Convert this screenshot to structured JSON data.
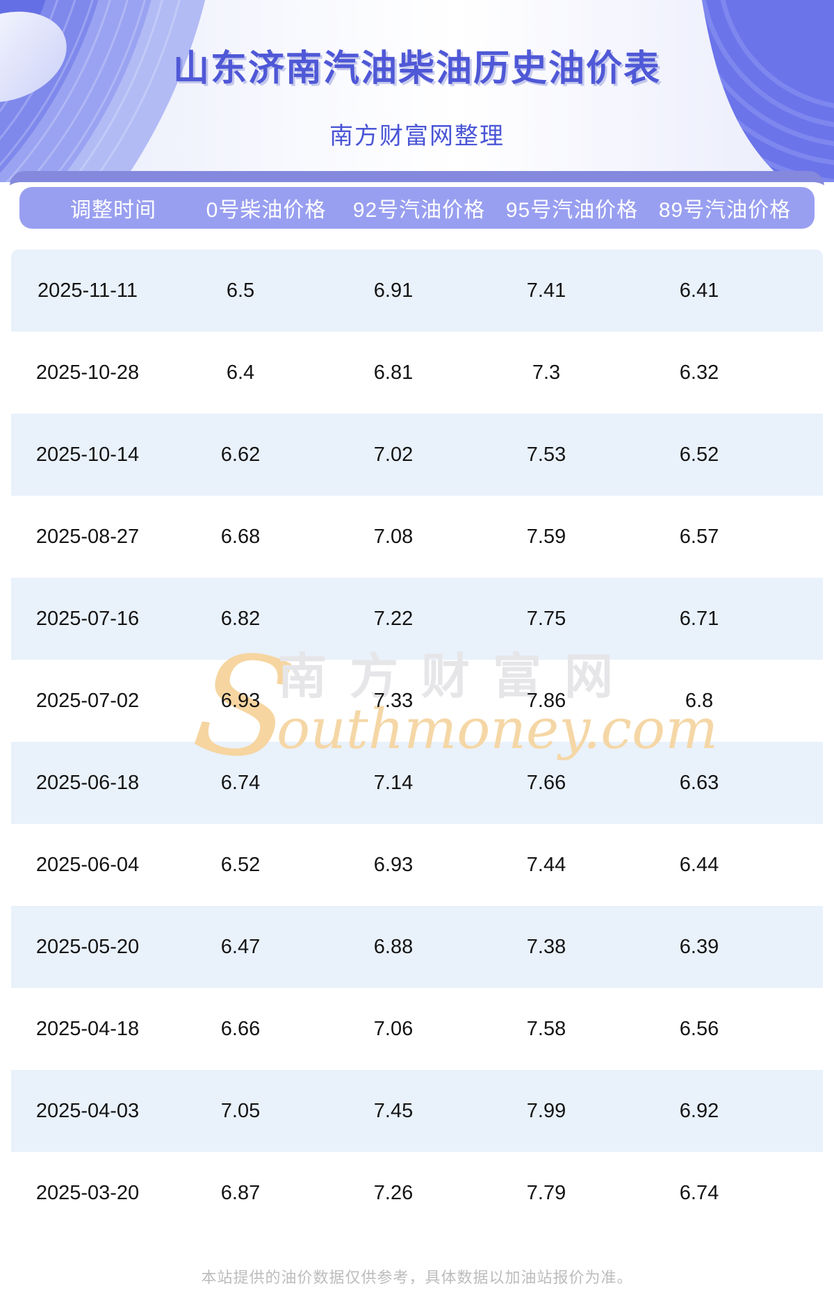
{
  "banner": {
    "title": "山东济南汽油柴油历史油价表",
    "subtitle": "南方财富网整理"
  },
  "table": {
    "headers": [
      "调整时间",
      "0号柴油价格",
      "92号汽油价格",
      "95号汽油价格",
      "89号汽油价格"
    ],
    "rows": [
      {
        "date": "2025-11-11",
        "values": [
          "6.5",
          "6.91",
          "7.41",
          "6.41"
        ]
      },
      {
        "date": "2025-10-28",
        "values": [
          "6.4",
          "6.81",
          "7.3",
          "6.32"
        ]
      },
      {
        "date": "2025-10-14",
        "values": [
          "6.62",
          "7.02",
          "7.53",
          "6.52"
        ]
      },
      {
        "date": "2025-08-27",
        "values": [
          "6.68",
          "7.08",
          "7.59",
          "6.57"
        ]
      },
      {
        "date": "2025-07-16",
        "values": [
          "6.82",
          "7.22",
          "7.75",
          "6.71"
        ]
      },
      {
        "date": "2025-07-02",
        "values": [
          "6.93",
          "7.33",
          "7.86",
          "6.8"
        ]
      },
      {
        "date": "2025-06-18",
        "values": [
          "6.74",
          "7.14",
          "7.66",
          "6.63"
        ]
      },
      {
        "date": "2025-06-04",
        "values": [
          "6.52",
          "6.93",
          "7.44",
          "6.44"
        ]
      },
      {
        "date": "2025-05-20",
        "values": [
          "6.47",
          "6.88",
          "7.38",
          "6.39"
        ]
      },
      {
        "date": "2025-04-18",
        "values": [
          "6.66",
          "7.06",
          "7.58",
          "6.56"
        ]
      },
      {
        "date": "2025-04-03",
        "values": [
          "7.05",
          "7.45",
          "7.99",
          "6.92"
        ]
      },
      {
        "date": "2025-03-20",
        "values": [
          "6.87",
          "7.26",
          "7.79",
          "6.74"
        ]
      }
    ]
  },
  "watermark": {
    "initial": "S",
    "cn": "南方财富网",
    "en": "outhmoney.com"
  },
  "footer": {
    "disclaimer": "本站提供的油价数据仅供参考，具体数据以加油站报价为准。"
  },
  "colors": {
    "title_text": "#4f58d6",
    "header_band": "#999ff0",
    "dark_strip": "#8489dd",
    "row_alt": "#e9f1fb",
    "banner_purple_dark": "#4e59dc",
    "banner_purple_light": "#b3bbf5",
    "banner_right_purple": "#6b74e9",
    "watermark_gray": "#e6e6e9",
    "watermark_orange": "#f5d7a6",
    "footer_text": "#bcbcbc"
  }
}
